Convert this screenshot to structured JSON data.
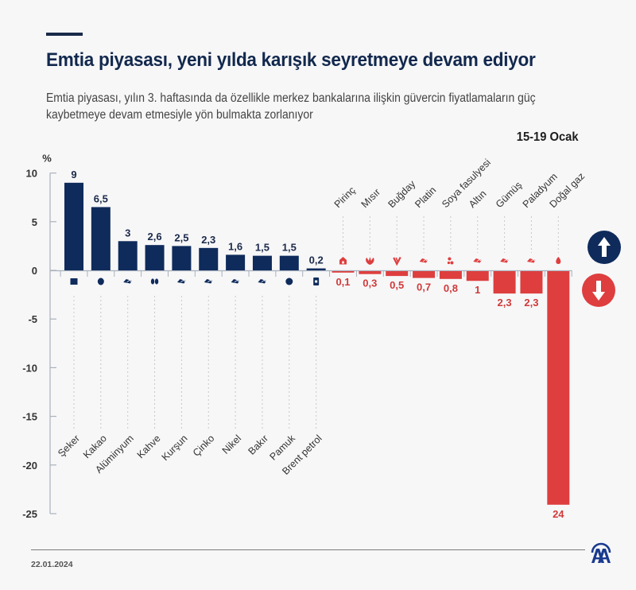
{
  "header": {
    "title": "Emtia piyasası, yeni yılda karışık seyretmeye devam ediyor",
    "subtitle": "Emtia piyasası, yılın 3. haftasında da özellikle merkez bankalarına ilişkin güvercin fiyatlamaların güç kaybetmeye devam etmesiyle yön bulmakta zorlanıyor",
    "date_range": "15-19 Ocak"
  },
  "footer": {
    "date": "22.01.2024",
    "logo": "aa-logo-icon"
  },
  "legend": {
    "up_icon": "arrow-up-icon",
    "down_icon": "arrow-down-icon"
  },
  "colors": {
    "positive": "#0f2b5b",
    "negative": "#de3e3e",
    "title": "#12284d",
    "axis": "#a9b1bd"
  },
  "chart_data": {
    "type": "bar",
    "title": "Emtia piyasası, yeni yılda karışık seyretmeye devam ediyor",
    "xlabel": "",
    "ylabel": "%",
    "ylim": [
      -25,
      10
    ],
    "yticks": [
      10,
      5,
      0,
      -5,
      -10,
      -15,
      -20,
      -25
    ],
    "ytick_labels": [
      "10",
      "5",
      "0",
      "-5",
      "-10",
      "-15",
      "-20",
      "-25"
    ],
    "grid": false,
    "legend": "right",
    "categories": [
      "Şeker",
      "Kakao",
      "Alüminyum",
      "Kahve",
      "Kurşun",
      "Çinko",
      "Nikel",
      "Bakır",
      "Pamuk",
      "Brent petrol",
      "Pirinç",
      "Mısır",
      "Buğday",
      "Platin",
      "Soya fasulyesi",
      "Altın",
      "Gümüş",
      "Paladyum",
      "Doğal gaz"
    ],
    "values": [
      9,
      6.5,
      3,
      2.6,
      2.5,
      2.3,
      1.6,
      1.5,
      1.5,
      0.2,
      -0.1,
      -0.3,
      -0.5,
      -0.7,
      -0.8,
      -1,
      -2.3,
      -2.3,
      -24
    ],
    "value_labels": [
      "9",
      "6,5",
      "3",
      "2,6",
      "2,5",
      "2,3",
      "1,6",
      "1,5",
      "1,5",
      "0,2",
      "0,1",
      "0,3",
      "0,5",
      "0,7",
      "0,8",
      "1",
      "2,3",
      "2,3",
      "24"
    ],
    "icons": [
      "sugar-icon",
      "cocoa-icon",
      "metal-ingot-icon",
      "coffee-bean-icon",
      "metal-ingot-icon",
      "metal-ingot-icon",
      "metal-ingot-icon",
      "metal-ingot-icon",
      "cotton-icon",
      "oil-barrel-icon",
      "rice-sack-icon",
      "corn-icon",
      "wheat-icon",
      "metal-ingot-icon",
      "soybean-icon",
      "metal-ingot-icon",
      "metal-ingot-icon",
      "metal-ingot-icon",
      "flame-icon"
    ]
  }
}
